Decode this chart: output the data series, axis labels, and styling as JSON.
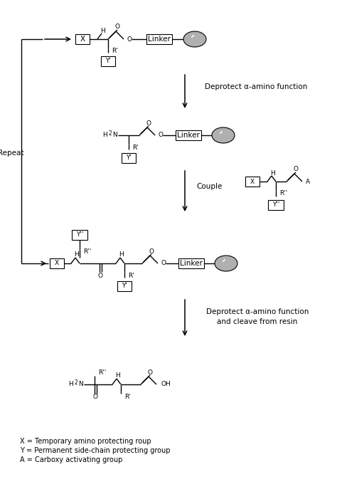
{
  "figsize": [
    4.74,
    7.08
  ],
  "dpi": 100,
  "bg_color": "#ffffff",
  "legend_lines": [
    "X = Temporary amino protecting roup",
    "Y = Permanent side-chain protecting group",
    "A = Carboxy activating group"
  ],
  "fs": 7.5,
  "fs_small": 6.5,
  "fs_legend": 7.0,
  "lw": 1.0
}
